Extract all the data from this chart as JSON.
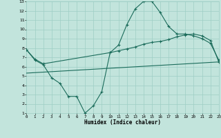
{
  "xlabel": "Humidex (Indice chaleur)",
  "background_color": "#c2e4dc",
  "grid_color": "#9dcec4",
  "line_color": "#1a6b5a",
  "xlim": [
    0,
    23
  ],
  "ylim": [
    1,
    13
  ],
  "x_ticks": [
    0,
    1,
    2,
    3,
    4,
    5,
    6,
    7,
    8,
    9,
    10,
    11,
    12,
    13,
    14,
    15,
    16,
    17,
    18,
    19,
    20,
    21,
    22,
    23
  ],
  "y_ticks": [
    1,
    2,
    3,
    4,
    5,
    6,
    7,
    8,
    9,
    10,
    11,
    12,
    13
  ],
  "line1_x": [
    0,
    1,
    2,
    3,
    4,
    5,
    6,
    7,
    8,
    9,
    10,
    11,
    12,
    13,
    14,
    15,
    16,
    17,
    18,
    19,
    20,
    21,
    22,
    23
  ],
  "line1_y": [
    7.8,
    6.7,
    6.2,
    4.8,
    4.2,
    2.8,
    2.8,
    1.0,
    1.8,
    3.3,
    7.5,
    8.3,
    10.5,
    12.2,
    13.0,
    13.0,
    11.8,
    10.3,
    9.5,
    9.5,
    9.3,
    9.0,
    8.5,
    6.7
  ],
  "line2_x": [
    0,
    1,
    2,
    10,
    11,
    12,
    13,
    14,
    15,
    16,
    17,
    18,
    19,
    20,
    21,
    22,
    23
  ],
  "line2_y": [
    7.8,
    6.8,
    6.3,
    7.5,
    7.7,
    7.9,
    8.1,
    8.4,
    8.6,
    8.7,
    8.9,
    9.2,
    9.4,
    9.5,
    9.3,
    8.8,
    6.5
  ],
  "line3_x": [
    0,
    23
  ],
  "line3_y": [
    5.3,
    6.5
  ]
}
